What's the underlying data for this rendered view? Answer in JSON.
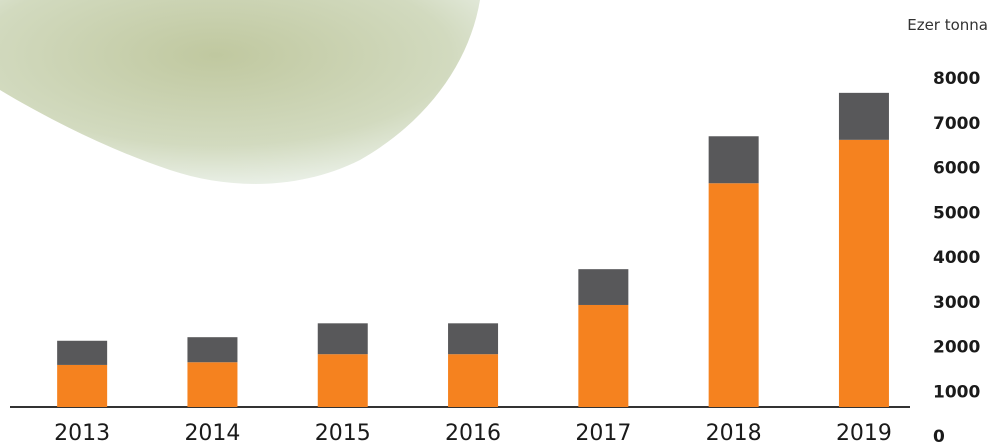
{
  "chart_data": {
    "type": "stacked_bar",
    "unit_label": "Ezer tonna",
    "categories": [
      "2013",
      "2014",
      "2015",
      "2016",
      "2017",
      "2018",
      "2019"
    ],
    "series": [
      {
        "color": "#f5821f",
        "values": [
          940,
          1000,
          1180,
          1180,
          2280,
          5000,
          5970
        ]
      },
      {
        "color": "#58585a",
        "values": [
          540,
          560,
          690,
          690,
          800,
          1050,
          1050
        ]
      }
    ],
    "ylim": [
      0,
      8000
    ],
    "yticks": [
      0,
      1000,
      2000,
      3000,
      4000,
      5000,
      6000,
      7000,
      8000
    ],
    "axis_position": "right"
  }
}
